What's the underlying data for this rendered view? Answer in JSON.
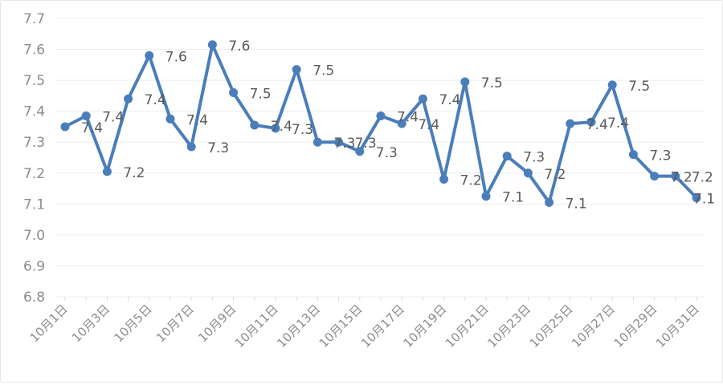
{
  "chart_data": {
    "type": "line",
    "title": "",
    "xlabel": "",
    "ylabel": "",
    "ylim": [
      6.8,
      7.7
    ],
    "y_ticks": [
      "6.8",
      "6.9",
      "7.0",
      "7.1",
      "7.2",
      "7.3",
      "7.4",
      "7.5",
      "7.6",
      "7.7"
    ],
    "grid": true,
    "legend": "none",
    "line_color": "#4a7ebb",
    "x": [
      "10月1日",
      "10月2日",
      "10月3日",
      "10月4日",
      "10月5日",
      "10月6日",
      "10月7日",
      "10月8日",
      "10月9日",
      "10月10日",
      "10月11日",
      "10月12日",
      "10月13日",
      "10月14日",
      "10月15日",
      "10月16日",
      "10月17日",
      "10月18日",
      "10月19日",
      "10月20日",
      "10月21日",
      "10月22日",
      "10月23日",
      "10月24日",
      "10月25日",
      "10月26日",
      "10月27日",
      "10月28日",
      "10月29日",
      "10月30日",
      "10月31日"
    ],
    "x_tick_labels_shown": [
      "10月1日",
      "10月3日",
      "10月5日",
      "10月7日",
      "10月9日",
      "10月11日",
      "10月13日",
      "10月15日",
      "10月17日",
      "10月19日",
      "10月21日",
      "10月23日",
      "10月25日",
      "10月27日",
      "10月29日",
      "10月31日"
    ],
    "values": [
      7.35,
      7.385,
      7.205,
      7.44,
      7.58,
      7.375,
      7.285,
      7.615,
      7.46,
      7.355,
      7.345,
      7.535,
      7.3,
      7.3,
      7.27,
      7.385,
      7.36,
      7.44,
      7.18,
      7.495,
      7.125,
      7.255,
      7.2,
      7.105,
      7.36,
      7.365,
      7.485,
      7.26,
      7.19,
      7.19,
      7.12
    ],
    "data_labels": [
      "7.4",
      "7.4",
      "7.2",
      "7.4",
      "7.6",
      "7.4",
      "7.3",
      "7.6",
      "7.5",
      "7.4",
      "7.3",
      "7.5",
      "7.3",
      "7.3",
      "7.3",
      "7.4",
      "7.4",
      "7.4",
      "7.2",
      "7.5",
      "7.1",
      "7.3",
      "7.2",
      "7.1",
      "7.4",
      "7.4",
      "7.5",
      "7.3",
      "7.2",
      "7.2",
      "7.1"
    ]
  }
}
